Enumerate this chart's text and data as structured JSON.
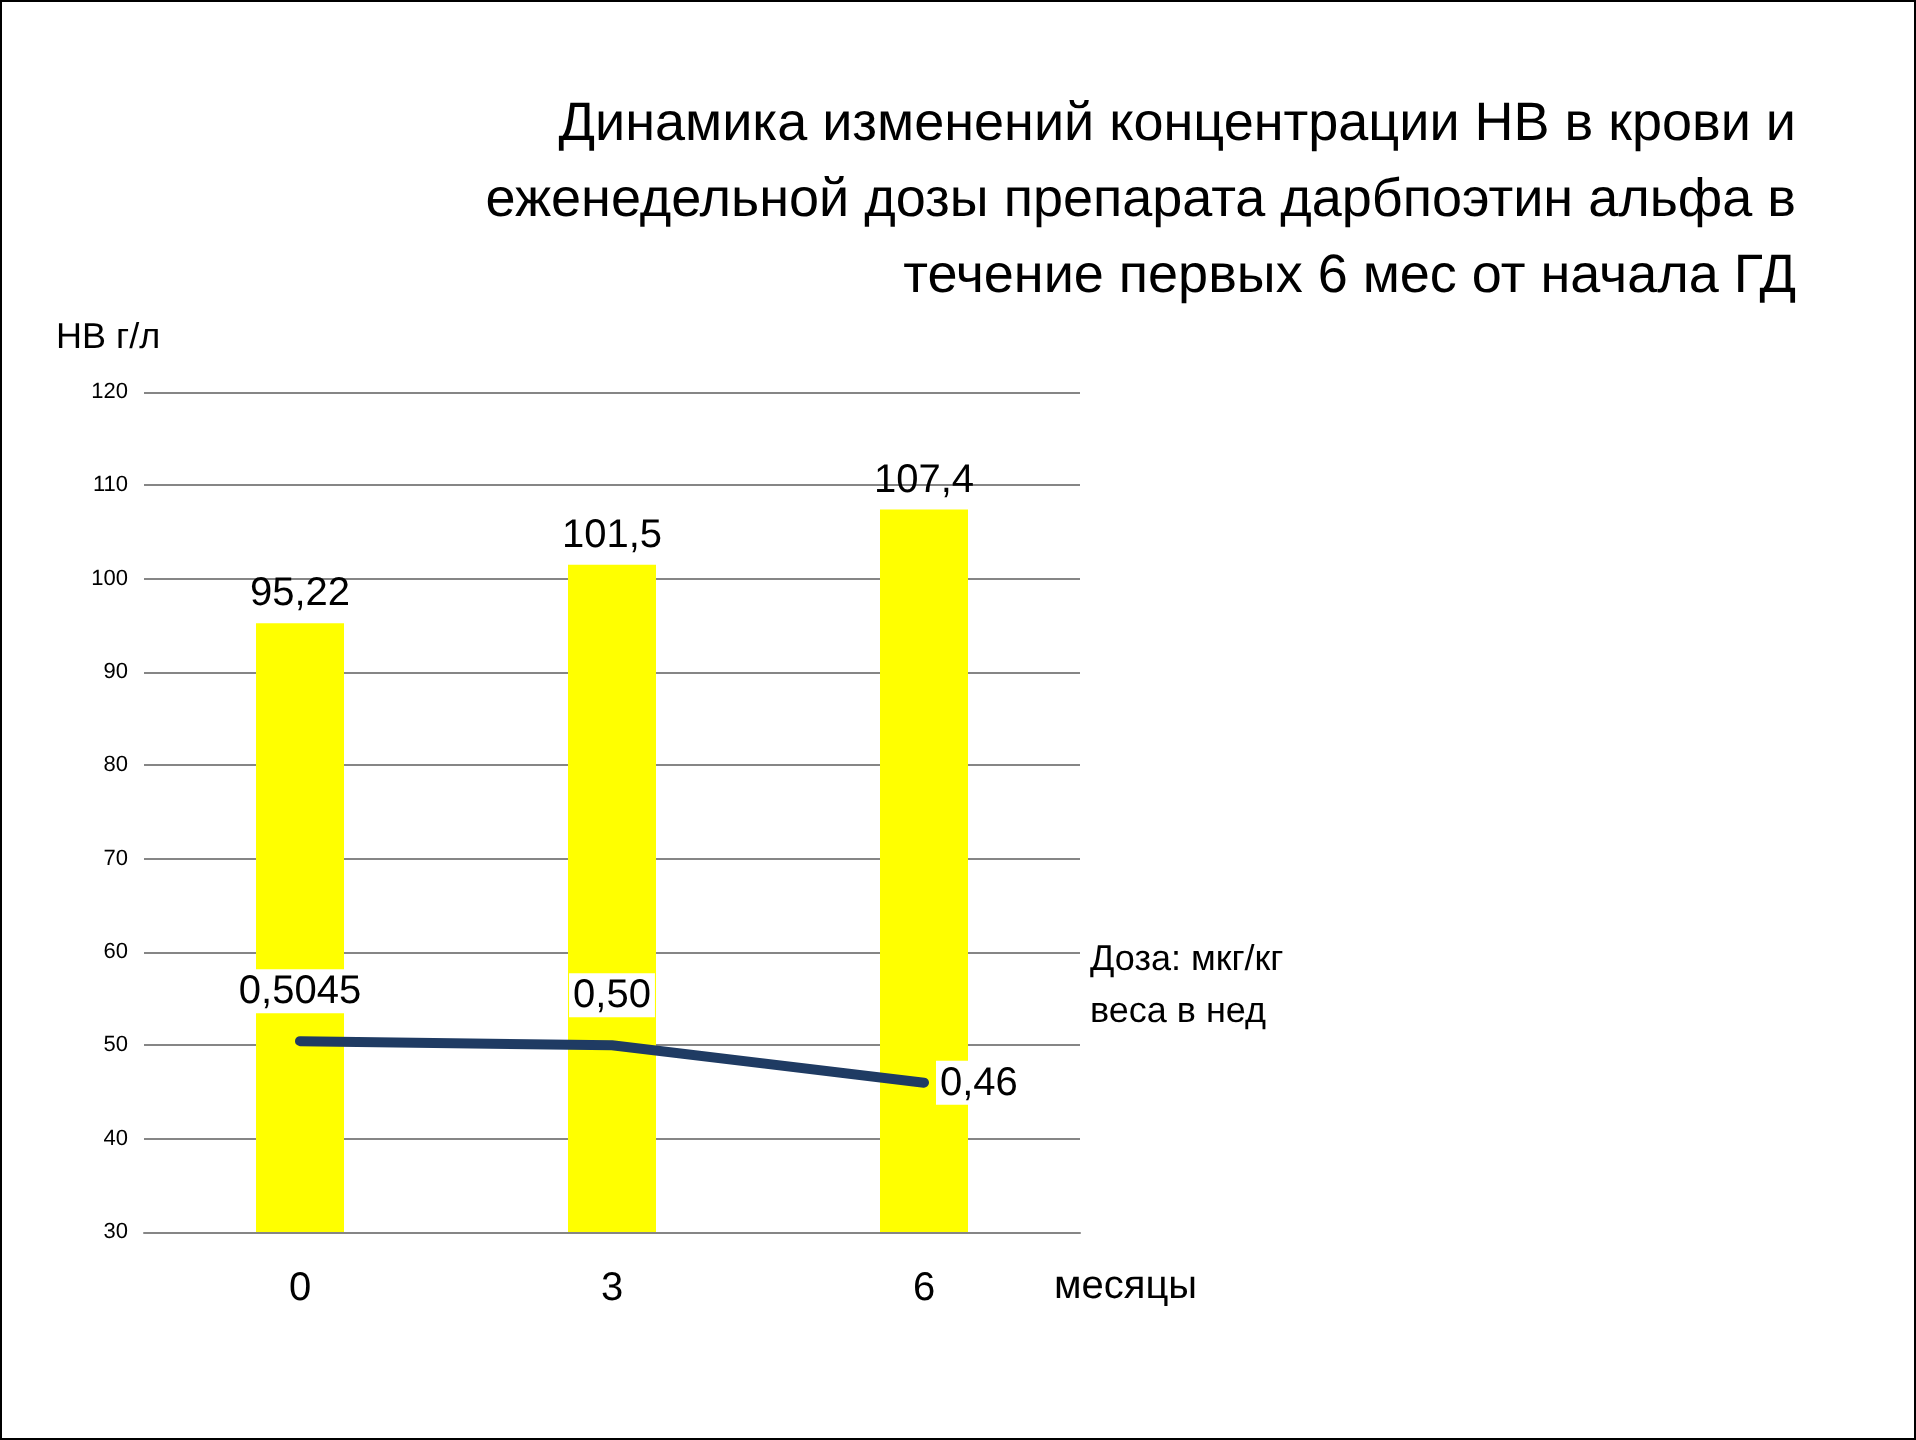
{
  "chart_data": {
    "type": "bar",
    "title": "Динамика изменений концентрации НВ в крови и еженедельной дозы препарата дарбпоэтин альфа в течение первых 6 мес от начала ГД",
    "ylabel": "НВ г/л",
    "y2label": "Доза: мкг/кг веса в нед",
    "xlabel": "месяцы",
    "categories": [
      "0",
      "3",
      "6"
    ],
    "series": [
      {
        "color": "#ffff00",
        "values": [
          95.22,
          101.5,
          107.4
        ],
        "value_labels": [
          "95,22",
          "101,5",
          "107,4"
        ]
      },
      {
        "type": "line",
        "axis": "y2",
        "color": "#1f3b63",
        "values": [
          0.5045,
          0.5,
          0.46
        ],
        "value_labels": [
          "0,5045",
          "0,50",
          "0,46"
        ]
      }
    ],
    "ylim": [
      30,
      120
    ],
    "yticks": [
      30,
      40,
      50,
      60,
      70,
      80,
      90,
      100,
      110,
      120
    ],
    "y2lim": [
      0.3,
      1.2
    ],
    "tick_labels": "xy",
    "grid": "y",
    "marker": "none",
    "line_style": "solid"
  }
}
